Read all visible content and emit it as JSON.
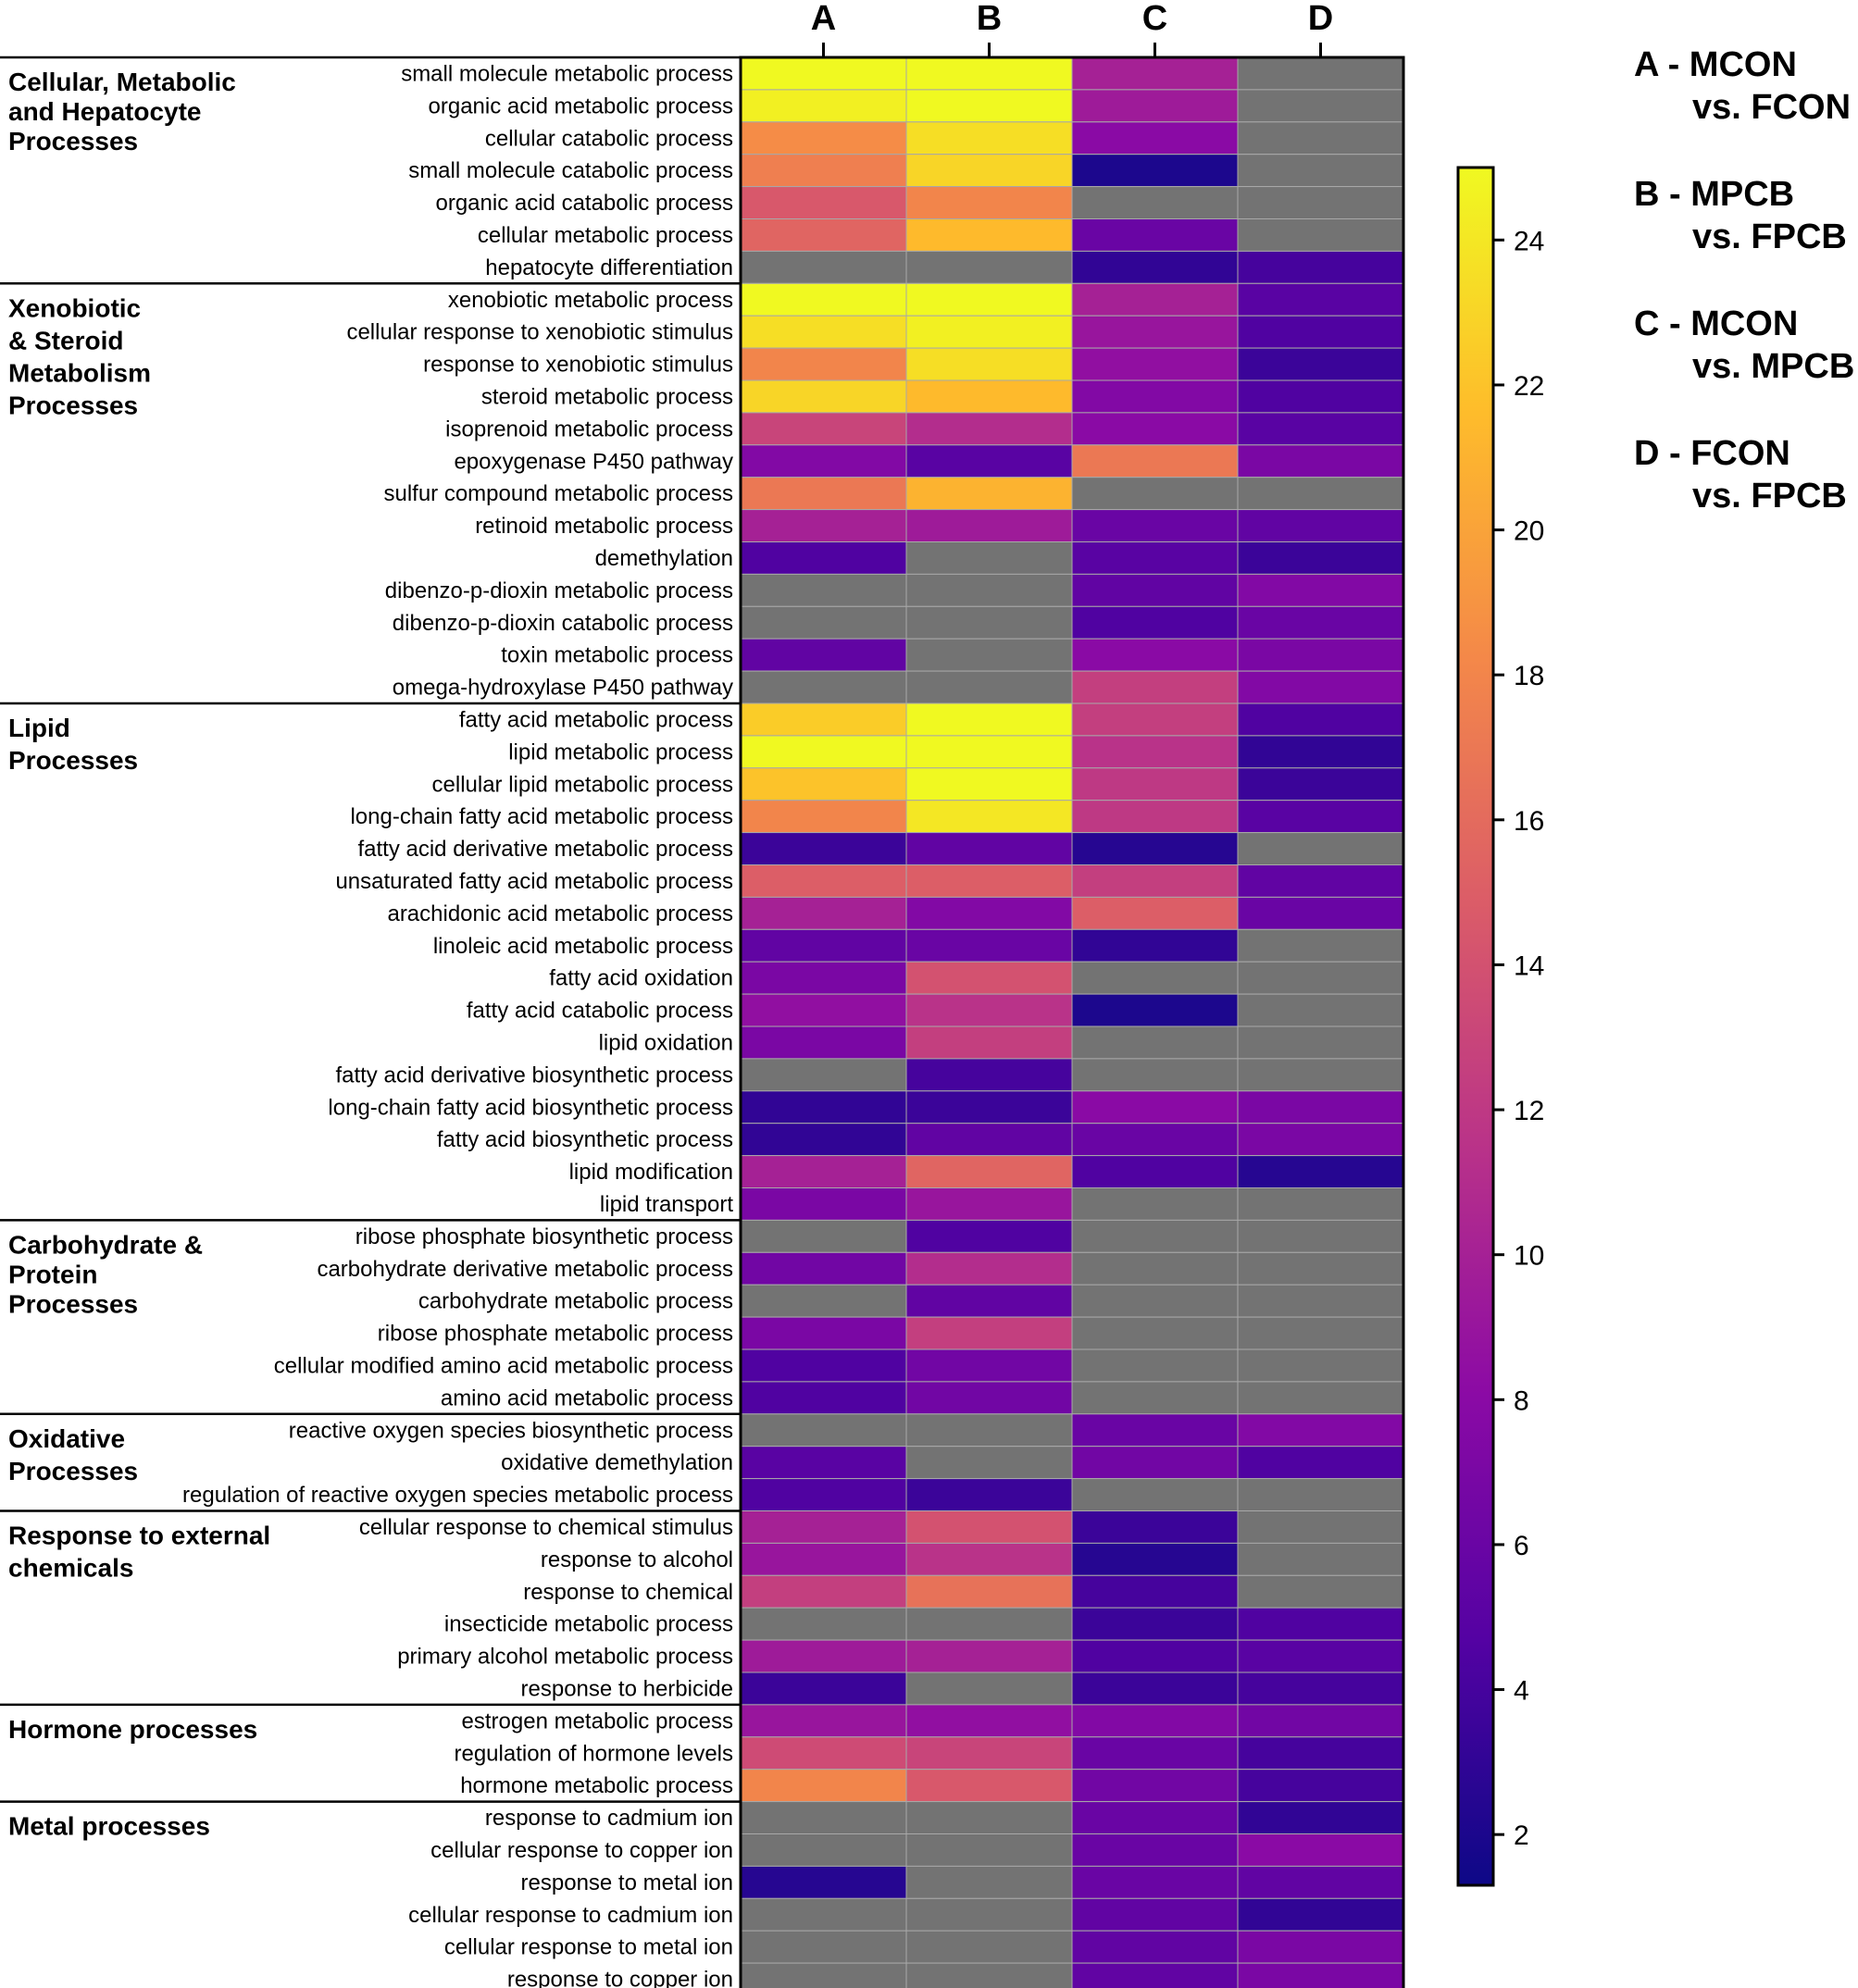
{
  "chart_data": {
    "type": "heatmap",
    "columns": [
      "A",
      "B",
      "C",
      "D"
    ],
    "na_color": "#737373",
    "colorbar": {
      "min": 1.3,
      "max": 25,
      "ticks": [
        2,
        4,
        6,
        8,
        10,
        12,
        14,
        16,
        18,
        20,
        22,
        24
      ],
      "colormap": "plasma"
    },
    "legend": [
      {
        "line1": "A - MCON",
        "line2": "vs. FCON"
      },
      {
        "line1": "B - MPCB",
        "line2": "vs. FPCB"
      },
      {
        "line1": "C - MCON",
        "line2": "vs. MPCB"
      },
      {
        "line1": "D - FCON",
        "line2": "vs. FPCB"
      }
    ],
    "groups": [
      {
        "lines": [
          "Cellular, Metabolic",
          "and Hepatocyte",
          "Processes"
        ],
        "start": 0,
        "count": 7
      },
      {
        "lines": [
          "Xenobiotic",
          "& Steroid",
          "Metabolism",
          "Processes"
        ],
        "start": 7,
        "count": 13
      },
      {
        "lines": [
          "Lipid",
          "Processes"
        ],
        "start": 20,
        "count": 16
      },
      {
        "lines": [
          "Carbohydrate &",
          "Protein",
          "Processes"
        ],
        "start": 36,
        "count": 6
      },
      {
        "lines": [
          "Oxidative",
          "Processes"
        ],
        "start": 42,
        "count": 3
      },
      {
        "lines": [
          "Response to external",
          "chemicals"
        ],
        "start": 45,
        "count": 6
      },
      {
        "lines": [
          "Hormone processes"
        ],
        "start": 51,
        "count": 3
      },
      {
        "lines": [
          "Metal processes"
        ],
        "start": 54,
        "count": 6
      }
    ],
    "rows": [
      {
        "label": "small molecule metabolic process",
        "values": [
          25,
          25,
          10,
          null
        ]
      },
      {
        "label": "organic acid metabolic process",
        "values": [
          24.5,
          25,
          9.5,
          null
        ]
      },
      {
        "label": "cellular catabolic process",
        "values": [
          18.5,
          23.5,
          8,
          null
        ]
      },
      {
        "label": "small molecule catabolic process",
        "values": [
          17.5,
          23,
          2,
          null
        ]
      },
      {
        "label": "organic acid catabolic process",
        "values": [
          14.5,
          18,
          null,
          null
        ]
      },
      {
        "label": "cellular metabolic process",
        "values": [
          15.5,
          21.5,
          6,
          null
        ]
      },
      {
        "label": "hepatocyte differentiation",
        "values": [
          null,
          null,
          3,
          4
        ]
      },
      {
        "label": "xenobiotic metabolic process",
        "values": [
          25,
          25,
          10,
          5
        ]
      },
      {
        "label": "cellular response to xenobiotic stimulus",
        "values": [
          23.5,
          24.5,
          9,
          4.5
        ]
      },
      {
        "label": "response to xenobiotic stimulus",
        "values": [
          18,
          23.5,
          8.5,
          3.5
        ]
      },
      {
        "label": "steroid metabolic process",
        "values": [
          23,
          21.5,
          7.5,
          4.5
        ]
      },
      {
        "label": "isoprenoid metabolic process",
        "values": [
          13,
          11,
          8,
          5
        ]
      },
      {
        "label": "epoxygenase P450 pathway",
        "values": [
          7.5,
          5,
          17,
          7
        ]
      },
      {
        "label": "sulfur compound metabolic process",
        "values": [
          17,
          21,
          null,
          null
        ]
      },
      {
        "label": "retinoid metabolic process",
        "values": [
          10,
          9.5,
          6,
          5.5
        ]
      },
      {
        "label": "demethylation",
        "values": [
          4.5,
          null,
          5,
          3.5
        ]
      },
      {
        "label": "dibenzo-p-dioxin metabolic process",
        "values": [
          null,
          null,
          5.5,
          7.5
        ]
      },
      {
        "label": "dibenzo-p-dioxin catabolic process",
        "values": [
          null,
          null,
          4.5,
          6
        ]
      },
      {
        "label": "toxin metabolic process",
        "values": [
          5.5,
          null,
          8,
          7
        ]
      },
      {
        "label": "omega-hydroxylase P450 pathway",
        "values": [
          null,
          null,
          12.5,
          7.5
        ]
      },
      {
        "label": "fatty acid metabolic process",
        "values": [
          22.5,
          25,
          12.5,
          4.5
        ]
      },
      {
        "label": "lipid metabolic process",
        "values": [
          25,
          25,
          11.5,
          3
        ]
      },
      {
        "label": "cellular lipid metabolic process",
        "values": [
          22,
          25,
          12,
          3.5
        ]
      },
      {
        "label": "long-chain fatty acid metabolic process",
        "values": [
          18,
          24,
          12,
          5
        ]
      },
      {
        "label": "fatty acid derivative metabolic process",
        "values": [
          3.5,
          5.5,
          2.5,
          null
        ]
      },
      {
        "label": "unsaturated fatty acid metabolic process",
        "values": [
          15,
          15,
          12.5,
          5.5
        ]
      },
      {
        "label": "arachidonic acid metabolic process",
        "values": [
          10,
          7.5,
          15,
          6
        ]
      },
      {
        "label": "linoleic acid metabolic process",
        "values": [
          5.5,
          6,
          3,
          null
        ]
      },
      {
        "label": "fatty acid oxidation",
        "values": [
          7,
          14,
          null,
          null
        ]
      },
      {
        "label": "fatty acid catabolic process",
        "values": [
          8.5,
          11.5,
          2,
          null
        ]
      },
      {
        "label": "lipid oxidation",
        "values": [
          7,
          12.5,
          null,
          null
        ]
      },
      {
        "label": "fatty acid derivative biosynthetic process",
        "values": [
          null,
          4,
          null,
          null
        ]
      },
      {
        "label": "long-chain fatty acid biosynthetic process",
        "values": [
          3,
          3.5,
          8,
          7
        ]
      },
      {
        "label": "fatty acid biosynthetic process",
        "values": [
          3,
          5.5,
          6,
          7
        ]
      },
      {
        "label": "lipid modification",
        "values": [
          10,
          15.5,
          4.5,
          2.5
        ]
      },
      {
        "label": "lipid transport",
        "values": [
          7,
          9,
          null,
          null
        ]
      },
      {
        "label": "ribose phosphate biosynthetic process",
        "values": [
          null,
          4.5,
          null,
          null
        ]
      },
      {
        "label": "carbohydrate derivative metabolic process",
        "values": [
          6.5,
          11,
          null,
          null
        ]
      },
      {
        "label": "carbohydrate metabolic process",
        "values": [
          null,
          5.5,
          null,
          null
        ]
      },
      {
        "label": "ribose phosphate metabolic process",
        "values": [
          7,
          12.5,
          null,
          null
        ]
      },
      {
        "label": "cellular modified amino acid metabolic process",
        "values": [
          4.5,
          6.5,
          null,
          null
        ]
      },
      {
        "label": "amino acid metabolic process",
        "values": [
          4.5,
          6.5,
          null,
          null
        ]
      },
      {
        "label": "reactive oxygen species biosynthetic process",
        "values": [
          null,
          null,
          6,
          7.5
        ]
      },
      {
        "label": "oxidative demethylation",
        "values": [
          5,
          null,
          6.5,
          4.5
        ]
      },
      {
        "label": "regulation of reactive oxygen species metabolic process",
        "values": [
          4.5,
          3.5,
          null,
          null
        ]
      },
      {
        "label": "cellular response to chemical stimulus",
        "values": [
          10,
          14,
          3.5,
          null
        ]
      },
      {
        "label": "response to alcohol",
        "values": [
          9,
          11.5,
          2.5,
          null
        ]
      },
      {
        "label": "response to chemical",
        "values": [
          12.5,
          16.5,
          4,
          null
        ]
      },
      {
        "label": "insecticide metabolic process",
        "values": [
          null,
          null,
          3.5,
          4.5
        ]
      },
      {
        "label": "primary alcohol metabolic process",
        "values": [
          9.5,
          10,
          4.5,
          5
        ]
      },
      {
        "label": "response to herbicide",
        "values": [
          3.5,
          null,
          3.5,
          4
        ]
      },
      {
        "label": "estrogen metabolic process",
        "values": [
          9,
          8.5,
          7.5,
          6.5
        ]
      },
      {
        "label": "regulation of hormone levels",
        "values": [
          13.5,
          13,
          6,
          4
        ]
      },
      {
        "label": "hormone metabolic process",
        "values": [
          18,
          14.5,
          6.5,
          4
        ]
      },
      {
        "label": "response to cadmium ion",
        "values": [
          null,
          null,
          6,
          3
        ]
      },
      {
        "label": "cellular response to copper ion",
        "values": [
          null,
          null,
          6,
          8
        ]
      },
      {
        "label": "response to metal ion",
        "values": [
          2.5,
          null,
          6,
          5.5
        ]
      },
      {
        "label": "cellular response to cadmium ion",
        "values": [
          null,
          null,
          5.5,
          3
        ]
      },
      {
        "label": "cellular response to metal ion",
        "values": [
          null,
          null,
          5.5,
          7
        ]
      },
      {
        "label": "response to copper ion",
        "values": [
          null,
          null,
          5.5,
          7
        ]
      }
    ]
  }
}
